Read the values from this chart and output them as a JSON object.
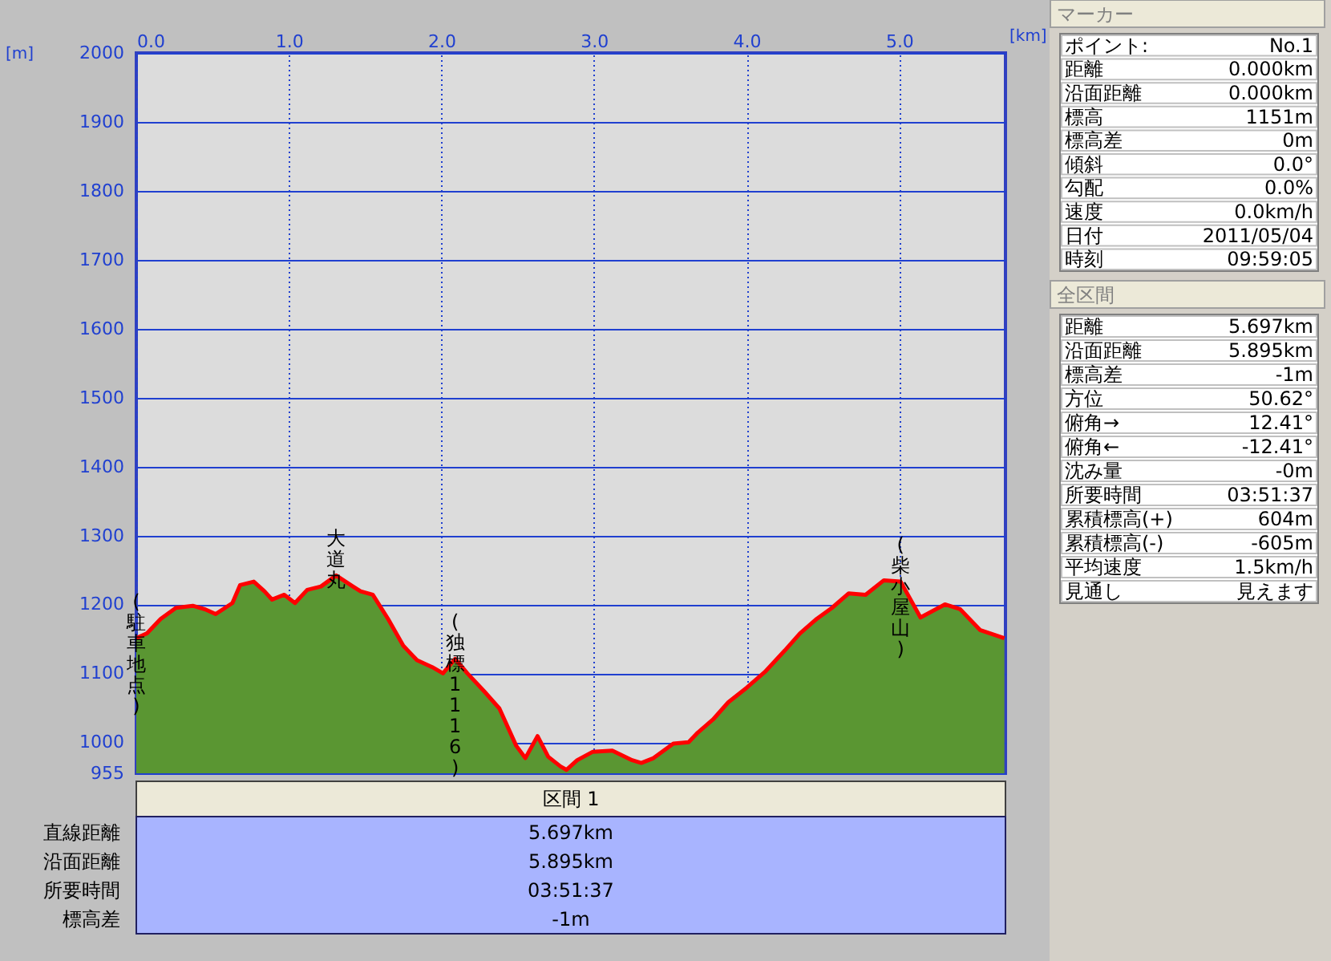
{
  "chart_data": {
    "type": "area",
    "xlabel": "[km]",
    "ylabel": "[m]",
    "x": [
      0,
      0.07,
      0.16,
      0.26,
      0.37,
      0.45,
      0.52,
      0.63,
      0.68,
      0.77,
      0.84,
      0.89,
      0.97,
      1.04,
      1.12,
      1.21,
      1.31,
      1.42,
      1.47,
      1.55,
      1.65,
      1.75,
      1.84,
      1.94,
      2.01,
      2.09,
      2.17,
      2.28,
      2.38,
      2.49,
      2.55,
      2.63,
      2.7,
      2.78,
      2.82,
      2.89,
      2.99,
      3.12,
      3.25,
      3.31,
      3.39,
      3.52,
      3.62,
      3.68,
      3.78,
      3.88,
      4.0,
      4.12,
      4.25,
      4.35,
      4.46,
      4.56,
      4.67,
      4.78,
      4.9,
      5.01,
      5.14,
      5.3,
      5.4,
      5.53,
      5.69
    ],
    "series": [
      {
        "color": "#5a9632",
        "values": [
          1151,
          1158,
          1179,
          1195,
          1198,
          1193,
          1186,
          1202,
          1228,
          1233,
          1219,
          1207,
          1214,
          1202,
          1221,
          1226,
          1242,
          1226,
          1219,
          1214,
          1179,
          1140,
          1119,
          1109,
          1100,
          1121,
          1100,
          1074,
          1049,
          995,
          977,
          1009,
          979,
          965,
          960,
          974,
          986,
          988,
          974,
          970,
          977,
          998,
          1000,
          1014,
          1033,
          1058,
          1079,
          1102,
          1133,
          1158,
          1179,
          1195,
          1216,
          1214,
          1235,
          1233,
          1181,
          1200,
          1193,
          1163,
          1151
        ]
      },
      {
        "type": "line",
        "color": "#ff0000",
        "values": [
          1151,
          1158,
          1179,
          1195,
          1198,
          1193,
          1186,
          1202,
          1228,
          1233,
          1219,
          1207,
          1214,
          1202,
          1221,
          1226,
          1242,
          1226,
          1219,
          1214,
          1179,
          1140,
          1119,
          1109,
          1100,
          1121,
          1100,
          1074,
          1049,
          995,
          977,
          1009,
          979,
          965,
          960,
          974,
          986,
          988,
          974,
          970,
          977,
          998,
          1000,
          1014,
          1033,
          1058,
          1079,
          1102,
          1133,
          1158,
          1179,
          1195,
          1216,
          1214,
          1235,
          1233,
          1181,
          1200,
          1193,
          1163,
          1151
        ]
      }
    ],
    "xlim": [
      0,
      5.697
    ],
    "ylim": [
      955,
      2000
    ],
    "xticks": [
      {
        "value": 0,
        "label": "0.0"
      },
      {
        "value": 1,
        "label": "1.0"
      },
      {
        "value": 2,
        "label": "2.0"
      },
      {
        "value": 3,
        "label": "3.0"
      },
      {
        "value": 4,
        "label": "4.0"
      },
      {
        "value": 5,
        "label": "5.0"
      }
    ],
    "yticks": [
      955,
      {
        "value": 1000,
        "label": "1000"
      },
      {
        "value": 1100,
        "label": "1100"
      },
      {
        "value": 1200,
        "label": "1200"
      },
      {
        "value": 1300,
        "label": "1300"
      },
      {
        "value": 1400,
        "label": "1400"
      },
      {
        "value": 1500,
        "label": "1500"
      },
      {
        "value": 1600,
        "label": "1600"
      },
      {
        "value": 1700,
        "label": "1700"
      },
      {
        "value": 1800,
        "label": "1800"
      },
      {
        "value": 1900,
        "label": "1900"
      },
      {
        "value": 2000,
        "label": "2000"
      }
    ],
    "grid": true,
    "annotations": [
      {
        "text": "(駐車地点)",
        "x": 0,
        "y": 1151
      },
      {
        "text": "大道丸",
        "x": 1.31,
        "y": 1242
      },
      {
        "text": "(独標1116)",
        "x": 2.09,
        "y": 1121
      },
      {
        "text": "(柴小屋山)",
        "x": 5.01,
        "y": 1233
      },
      "マーカー",
      "ポイント:",
      "No.1",
      "距離",
      "0.000km",
      "沿面距離",
      "0.000km",
      "標高",
      "1151m",
      "標高差",
      "0m",
      "傾斜",
      "0.0°",
      "勾配",
      "0.0%",
      "速度",
      "0.0km/h",
      "日付",
      "2011/05/04",
      "時刻",
      "09:59:05",
      "全区間",
      "距離",
      "5.697km",
      "沿面距離",
      "5.895km",
      "標高差",
      "-1m",
      "方位",
      "50.62°",
      "俯角→",
      "12.41°",
      "俯角←",
      "-12.41°",
      "沈み量",
      "-0m",
      "所要時間",
      "03:51:37",
      "累積標高(+)",
      "604m",
      "累積標高(-)",
      "-605m",
      "平均速度",
      "1.5km/h",
      "見通し",
      "見えます",
      "区間 1",
      "直線距離",
      "5.697km",
      "沿面距離",
      "5.895km",
      "所要時間",
      "03:51:37",
      "標高差",
      "-1m"
    ]
  }
}
